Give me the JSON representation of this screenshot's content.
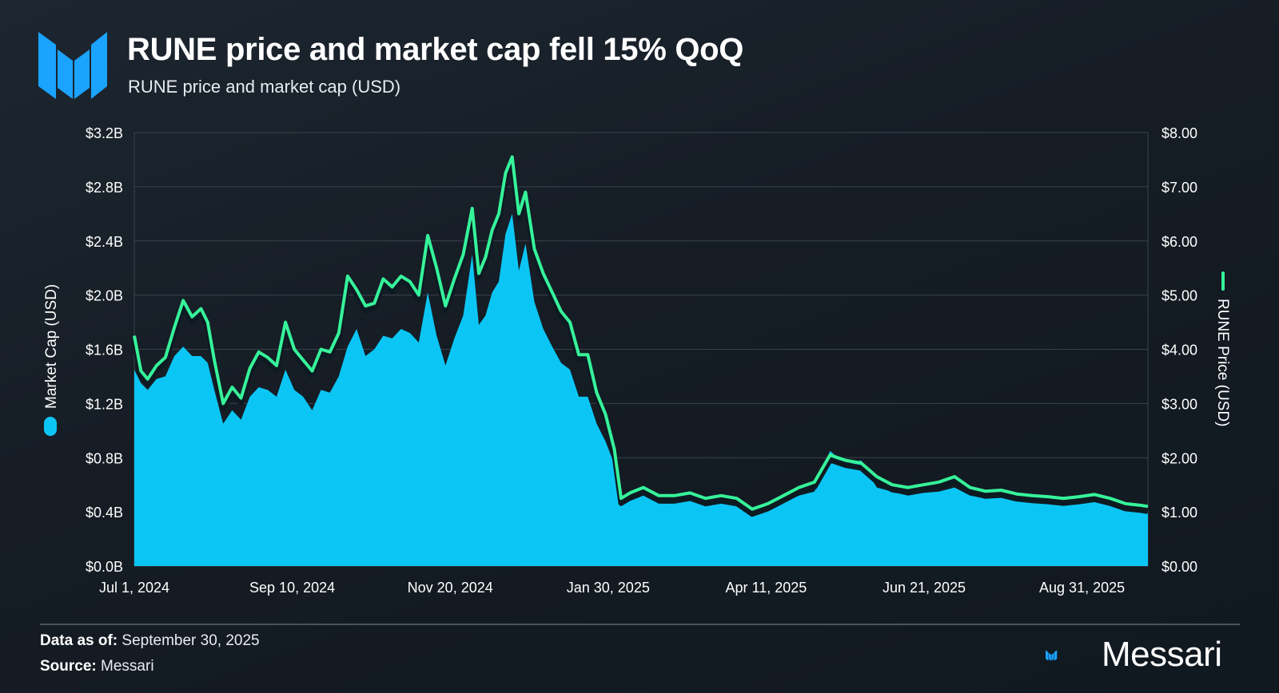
{
  "header": {
    "title": "RUNE price and market cap fell 15% QoQ",
    "subtitle": "RUNE price and market cap (USD)"
  },
  "footer": {
    "data_as_of_label": "Data as of:",
    "data_as_of_value": "September 30, 2025",
    "source_label": "Source:",
    "source_value": "Messari",
    "brand_name": "Messari"
  },
  "colors": {
    "market_cap_fill": "#0bc6f5",
    "price_line": "#36f39a",
    "grid": "#3a434d",
    "brand_blue": "#1aa3ff"
  },
  "chart_data": {
    "type": "area",
    "title": "",
    "xlabel": "",
    "ylabel_left": "Market Cap (USD)",
    "ylabel_right": "RUNE Price (USD)",
    "x_ticks": [
      "Jul 1, 2024",
      "Sep 10, 2024",
      "Nov 20, 2024",
      "Jan 30, 2025",
      "Apr 11, 2025",
      "Jun 21, 2025",
      "Aug 31, 2025"
    ],
    "y_left_ticks": [
      "$0.0B",
      "$0.4B",
      "$0.8B",
      "$1.2B",
      "$1.6B",
      "$2.0B",
      "$2.4B",
      "$2.8B",
      "$3.2B"
    ],
    "y_right_ticks": [
      "$0.00",
      "$1.00",
      "$2.00",
      "$3.00",
      "$4.00",
      "$5.00",
      "$6.00",
      "$7.00",
      "$8.00"
    ],
    "y_left_range": [
      0,
      3.2
    ],
    "y_right_range": [
      0,
      8
    ],
    "x_range": [
      "2024-07-01",
      "2025-09-30"
    ],
    "grid": true,
    "legend_position": "axis-titles",
    "series": [
      {
        "name": "Market Cap (USD)",
        "axis": "left",
        "style": "area",
        "x": [
          "2024-07-01",
          "2024-07-04",
          "2024-07-07",
          "2024-07-11",
          "2024-07-15",
          "2024-07-19",
          "2024-07-23",
          "2024-07-27",
          "2024-07-31",
          "2024-08-03",
          "2024-08-06",
          "2024-08-10",
          "2024-08-14",
          "2024-08-18",
          "2024-08-22",
          "2024-08-26",
          "2024-08-30",
          "2024-09-03",
          "2024-09-07",
          "2024-09-11",
          "2024-09-15",
          "2024-09-19",
          "2024-09-23",
          "2024-09-27",
          "2024-10-01",
          "2024-10-05",
          "2024-10-09",
          "2024-10-13",
          "2024-10-17",
          "2024-10-21",
          "2024-10-25",
          "2024-10-29",
          "2024-11-02",
          "2024-11-06",
          "2024-11-10",
          "2024-11-14",
          "2024-11-18",
          "2024-11-22",
          "2024-11-26",
          "2024-11-30",
          "2024-12-03",
          "2024-12-06",
          "2024-12-09",
          "2024-12-12",
          "2024-12-15",
          "2024-12-18",
          "2024-12-21",
          "2024-12-24",
          "2024-12-28",
          "2025-01-01",
          "2025-01-05",
          "2025-01-09",
          "2025-01-13",
          "2025-01-17",
          "2025-01-21",
          "2025-01-25",
          "2025-01-29",
          "2025-02-02",
          "2025-02-05",
          "2025-02-09",
          "2025-02-15",
          "2025-02-22",
          "2025-03-01",
          "2025-03-08",
          "2025-03-15",
          "2025-03-22",
          "2025-03-29",
          "2025-04-05",
          "2025-04-12",
          "2025-04-19",
          "2025-04-26",
          "2025-05-03",
          "2025-05-10",
          "2025-05-17",
          "2025-05-24",
          "2025-05-31",
          "2025-06-07",
          "2025-06-14",
          "2025-06-21",
          "2025-06-28",
          "2025-07-05",
          "2025-07-12",
          "2025-07-19",
          "2025-07-26",
          "2025-08-02",
          "2025-08-09",
          "2025-08-16",
          "2025-08-23",
          "2025-08-30",
          "2025-09-06",
          "2025-09-13",
          "2025-09-20",
          "2025-09-27",
          "2025-09-30"
        ],
        "values": [
          1.45,
          1.35,
          1.3,
          1.38,
          1.4,
          1.55,
          1.62,
          1.55,
          1.55,
          1.5,
          1.3,
          1.05,
          1.15,
          1.08,
          1.25,
          1.32,
          1.3,
          1.25,
          1.45,
          1.3,
          1.25,
          1.15,
          1.3,
          1.28,
          1.4,
          1.62,
          1.75,
          1.55,
          1.6,
          1.7,
          1.68,
          1.75,
          1.72,
          1.65,
          2.02,
          1.7,
          1.48,
          1.68,
          1.85,
          2.3,
          1.78,
          1.85,
          2.02,
          2.1,
          2.45,
          2.6,
          2.18,
          2.38,
          1.95,
          1.75,
          1.62,
          1.5,
          1.45,
          1.25,
          1.25,
          1.05,
          0.92,
          0.75,
          0.45,
          0.48,
          0.52,
          0.46,
          0.46,
          0.48,
          0.44,
          0.46,
          0.44,
          0.4,
          0.42,
          0.47,
          0.52,
          0.55,
          0.85,
          0.75,
          0.78,
          0.58,
          0.55,
          0.52,
          0.54,
          0.55,
          0.58,
          0.52,
          0.5,
          0.51,
          0.48,
          0.47,
          0.46,
          0.45,
          0.46,
          0.48,
          0.45,
          0.42,
          0.41,
          0.4
        ]
      },
      {
        "name": "RUNE Price (USD)",
        "axis": "right",
        "style": "line",
        "x": [
          "2024-07-01",
          "2024-07-04",
          "2024-07-07",
          "2024-07-11",
          "2024-07-15",
          "2024-07-19",
          "2024-07-23",
          "2024-07-27",
          "2024-07-31",
          "2024-08-03",
          "2024-08-06",
          "2024-08-10",
          "2024-08-14",
          "2024-08-18",
          "2024-08-22",
          "2024-08-26",
          "2024-08-30",
          "2024-09-03",
          "2024-09-07",
          "2024-09-11",
          "2024-09-15",
          "2024-09-19",
          "2024-09-23",
          "2024-09-27",
          "2024-10-01",
          "2024-10-05",
          "2024-10-09",
          "2024-10-13",
          "2024-10-17",
          "2024-10-21",
          "2024-10-25",
          "2024-10-29",
          "2024-11-02",
          "2024-11-06",
          "2024-11-10",
          "2024-11-14",
          "2024-11-18",
          "2024-11-22",
          "2024-11-26",
          "2024-11-30",
          "2024-12-03",
          "2024-12-06",
          "2024-12-09",
          "2024-12-12",
          "2024-12-15",
          "2024-12-18",
          "2024-12-21",
          "2024-12-24",
          "2024-12-28",
          "2025-01-01",
          "2025-01-05",
          "2025-01-09",
          "2025-01-13",
          "2025-01-17",
          "2025-01-21",
          "2025-01-25",
          "2025-01-29",
          "2025-02-02",
          "2025-02-05",
          "2025-02-09",
          "2025-02-15",
          "2025-02-22",
          "2025-03-01",
          "2025-03-08",
          "2025-03-15",
          "2025-03-22",
          "2025-03-29",
          "2025-04-05",
          "2025-04-12",
          "2025-04-19",
          "2025-04-26",
          "2025-05-03",
          "2025-05-10",
          "2025-05-17",
          "2025-05-24",
          "2025-05-31",
          "2025-06-07",
          "2025-06-14",
          "2025-06-21",
          "2025-06-28",
          "2025-07-05",
          "2025-07-12",
          "2025-07-19",
          "2025-07-26",
          "2025-08-02",
          "2025-08-09",
          "2025-08-16",
          "2025-08-23",
          "2025-08-30",
          "2025-09-06",
          "2025-09-13",
          "2025-09-20",
          "2025-09-27",
          "2025-09-30"
        ],
        "values": [
          4.25,
          3.6,
          3.45,
          3.7,
          3.85,
          4.4,
          4.9,
          4.6,
          4.75,
          4.5,
          3.8,
          3.0,
          3.3,
          3.1,
          3.65,
          3.95,
          3.85,
          3.7,
          4.5,
          4.0,
          3.8,
          3.6,
          4.0,
          3.95,
          4.3,
          5.35,
          5.1,
          4.8,
          4.85,
          5.3,
          5.15,
          5.35,
          5.25,
          5.0,
          6.1,
          5.5,
          4.8,
          5.3,
          5.75,
          6.6,
          5.4,
          5.7,
          6.2,
          6.5,
          7.25,
          7.55,
          6.5,
          6.9,
          5.85,
          5.4,
          5.05,
          4.7,
          4.5,
          3.9,
          3.9,
          3.2,
          2.8,
          2.15,
          1.25,
          1.35,
          1.45,
          1.3,
          1.3,
          1.35,
          1.25,
          1.3,
          1.25,
          1.05,
          1.15,
          1.3,
          1.45,
          1.55,
          2.05,
          1.95,
          1.9,
          1.65,
          1.5,
          1.45,
          1.5,
          1.55,
          1.65,
          1.45,
          1.38,
          1.4,
          1.33,
          1.3,
          1.28,
          1.25,
          1.28,
          1.32,
          1.25,
          1.15,
          1.12,
          1.1
        ]
      }
    ]
  }
}
